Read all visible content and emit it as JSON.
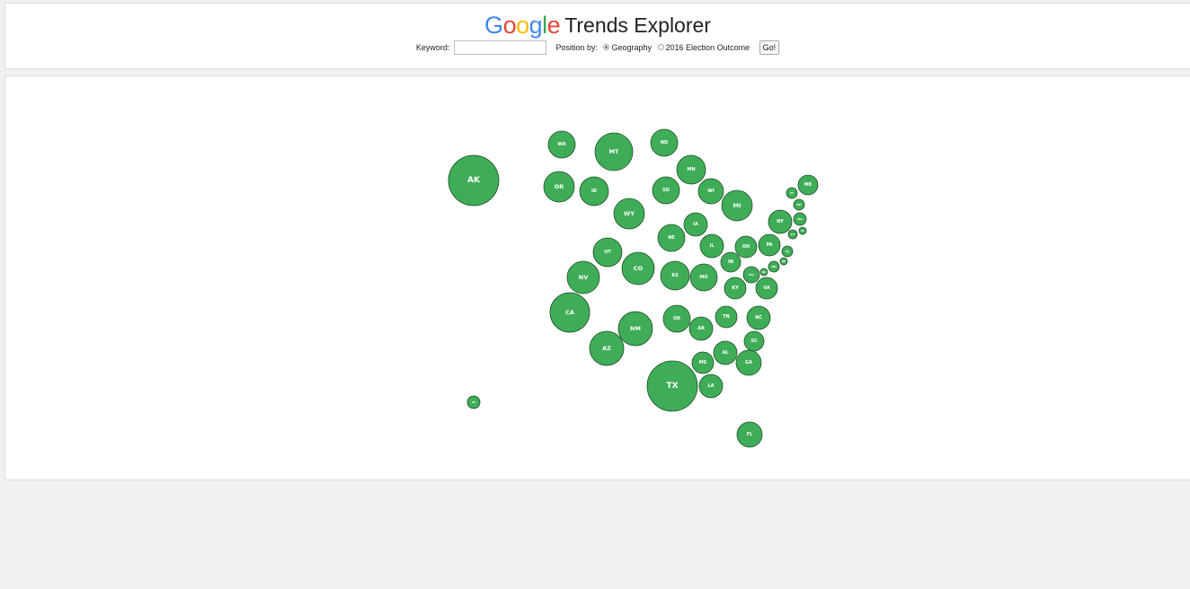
{
  "header": {
    "logo_letters": [
      {
        "char": "G",
        "color": "#4285F4"
      },
      {
        "char": "o",
        "color": "#EA4335"
      },
      {
        "char": "o",
        "color": "#FBBC05"
      },
      {
        "char": "g",
        "color": "#4285F4"
      },
      {
        "char": "l",
        "color": "#34A853"
      },
      {
        "char": "e",
        "color": "#EA4335"
      }
    ],
    "title": "Trends Explorer"
  },
  "controls": {
    "keyword_label": "Keyword:",
    "keyword_value": "",
    "position_label": "Position by:",
    "options": [
      {
        "label": "Geography",
        "selected": true
      },
      {
        "label": "2016 Election Outcome",
        "selected": false
      }
    ],
    "go_label": "Go!"
  },
  "map": {
    "bubble_color": "#3fad57",
    "bubble_stroke": "#1f4d28",
    "states": [
      "AK",
      "WA",
      "MT",
      "ND",
      "MN",
      "OR",
      "ID",
      "SD",
      "WI",
      "MI",
      "WY",
      "IA",
      "NE",
      "IL",
      "OH",
      "PA",
      "NY",
      "VT",
      "ME",
      "NH",
      "MA",
      "RI",
      "CT",
      "NJ",
      "DE",
      "MD",
      "DC",
      "WV",
      "IN",
      "UT",
      "CO",
      "NV",
      "KS",
      "MO",
      "KY",
      "VA",
      "CA",
      "OK",
      "AR",
      "TN",
      "NC",
      "NM",
      "SC",
      "AZ",
      "AL",
      "GA",
      "MS",
      "TX",
      "LA",
      "HI",
      "FL"
    ]
  }
}
